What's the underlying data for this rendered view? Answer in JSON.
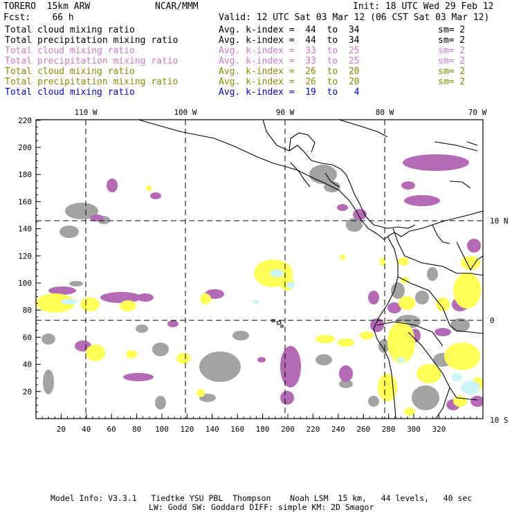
{
  "header": {
    "model": "TORERO  15km ARW",
    "org": "NCAR/MMM",
    "init": "Init: 18 UTC Wed 29 Feb 12",
    "fcst": "Fcst:    66 h",
    "valid": "Valid: 12 UTC Sat 03 Mar 12 (06 CST Sat 03 Mar 12)"
  },
  "legend": [
    {
      "field": "Total cloud mixing ratio",
      "kindex": "Avg. k-index =  44  to  34",
      "sm": "sm= 2",
      "color": "#000000"
    },
    {
      "field": "Total precipitation mixing ratio",
      "kindex": "Avg. k-index =  44  to  34",
      "sm": "sm= 2",
      "color": "#000000"
    },
    {
      "field": "Total cloud mixing ratio",
      "kindex": "Avg. k-index =  33  to  25",
      "sm": "sm= 2",
      "color": "#cc77cc"
    },
    {
      "field": "Total precipitation mixing ratio",
      "kindex": "Avg. k-index =  33  to  25",
      "sm": "sm= 2",
      "color": "#cc77cc"
    },
    {
      "field": "Total cloud mixing ratio",
      "kindex": "Avg. k-index =  26  to  20",
      "sm": "sm= 2",
      "color": "#8a8a00"
    },
    {
      "field": "Total precipitation mixing ratio",
      "kindex": "Avg. k-index =  26  to  20",
      "sm": "sm= 2",
      "color": "#8a8a00"
    },
    {
      "field": "Total cloud mixing ratio",
      "kindex": "Avg. k-index =  19  to   4",
      "sm": "",
      "color": "#0000dd"
    }
  ],
  "map": {
    "x_ticks": [
      "20",
      "40",
      "60",
      "80",
      "100",
      "120",
      "140",
      "160",
      "180",
      "200",
      "220",
      "240",
      "260",
      "280",
      "300",
      "320"
    ],
    "y_ticks": [
      "20",
      "40",
      "60",
      "80",
      "100",
      "120",
      "140",
      "160",
      "180",
      "200",
      "220"
    ],
    "lon_labels": [
      "110 W",
      "100 W",
      "90 W",
      "80 W",
      "70 W"
    ],
    "lat_labels": [
      "10 N",
      "0",
      "10 S"
    ],
    "colors": {
      "gray": "#a3a3a3",
      "purple": "#b56ab5",
      "yellow": "#ffff55",
      "cyan": "#cdf5f8",
      "coast": "#000000",
      "grid": "#000000"
    }
  },
  "footer": {
    "line1": "Model Info: V3.3.1   Tiedtke YSU PBL  Thompson    Noah LSM  15 km,   44 levels,   40 sec",
    "line2": "LW: Godd SW: Goddard DIFF: simple KM: 2D Smagor"
  }
}
